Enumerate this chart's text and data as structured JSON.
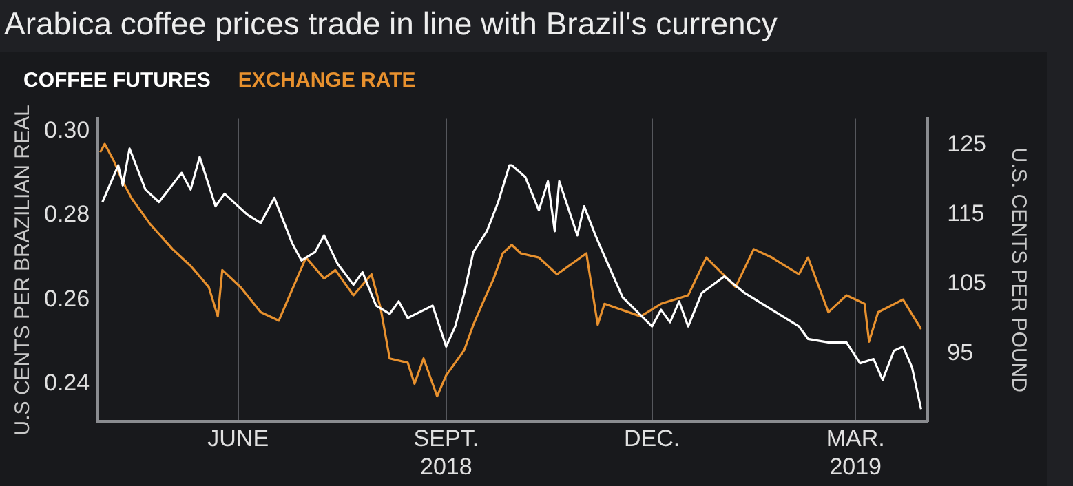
{
  "chart_data": {
    "type": "line",
    "title": "Arabica coffee prices trade in line with Brazil's currency",
    "ylabel": "U.S CENTS PER BRAZILIAN REAL",
    "y2label": "U.S. CENTS PER POUND",
    "xlim": [
      "2018-03-31",
      "2019-04-02"
    ],
    "xticks": [
      {
        "value": "2018-06-01",
        "label": "JUNE"
      },
      {
        "value": "2018-09-01",
        "label": "SEPT.\n2018"
      },
      {
        "value": "2018-12-01",
        "label": "DEC."
      },
      {
        "value": "2019-03-01",
        "label": "MAR.\n2019"
      }
    ],
    "ylim": [
      0.231,
      0.303
    ],
    "yticks": [
      0.24,
      {
        "value": 0.26,
        "label": "0.26"
      },
      {
        "value": 0.28,
        "label": "0.28"
      },
      {
        "value": 0.3,
        "label": "0.30"
      }
    ],
    "y2lim": [
      85.2,
      128.8
    ],
    "y2ticks": [
      95,
      105,
      115,
      125
    ],
    "grid": "x",
    "legend": "top left",
    "marker": "none",
    "line_style": "solid",
    "series": [
      {
        "name": "COFFEE FUTURES",
        "color": "#ffffff",
        "axis": "y2",
        "x": [
          "2018-04-02",
          "2018-04-09",
          "2018-04-11",
          "2018-04-14",
          "2018-04-21",
          "2018-04-27",
          "2018-05-07",
          "2018-05-11",
          "2018-05-15",
          "2018-05-22",
          "2018-05-26",
          "2018-06-05",
          "2018-06-11",
          "2018-06-17",
          "2018-06-25",
          "2018-06-29",
          "2018-07-05",
          "2018-07-09",
          "2018-07-15",
          "2018-07-22",
          "2018-07-26",
          "2018-08-01",
          "2018-08-07",
          "2018-08-11",
          "2018-08-15",
          "2018-08-26",
          "2018-09-01",
          "2018-09-05",
          "2018-09-09",
          "2018-09-13",
          "2018-09-19",
          "2018-09-24",
          "2018-09-29",
          "2018-09-30",
          "2018-10-06",
          "2018-10-12",
          "2018-10-16",
          "2018-10-19",
          "2018-10-21",
          "2018-10-29",
          "2018-11-01",
          "2018-11-06",
          "2018-11-10",
          "2018-11-18",
          "2018-12-01",
          "2018-12-05",
          "2018-12-09",
          "2018-12-13",
          "2018-12-17",
          "2018-12-23",
          "2019-01-02",
          "2019-01-11",
          "2019-01-23",
          "2019-02-04",
          "2019-02-08",
          "2019-02-17",
          "2019-02-25",
          "2019-03-03",
          "2019-03-09",
          "2019-03-13",
          "2019-03-18",
          "2019-03-22",
          "2019-03-26",
          "2019-03-30"
        ],
        "values": [
          116.8,
          122.1,
          119.2,
          124.5,
          118.6,
          116.8,
          121.0,
          118.6,
          123.3,
          116.2,
          118.0,
          115.0,
          113.8,
          117.4,
          110.8,
          108.4,
          109.6,
          112.0,
          107.9,
          104.9,
          106.7,
          101.9,
          100.7,
          102.5,
          100.1,
          101.9,
          96.0,
          98.9,
          103.7,
          109.6,
          112.6,
          116.8,
          122.1,
          122.1,
          120.4,
          115.6,
          119.8,
          112.6,
          119.8,
          112.0,
          116.2,
          112.0,
          109.0,
          103.1,
          98.9,
          101.3,
          99.5,
          102.5,
          98.9,
          103.7,
          106.1,
          103.7,
          101.3,
          98.9,
          97.1,
          96.6,
          96.6,
          93.6,
          94.2,
          91.2,
          95.4,
          96.0,
          93.0,
          87.0
        ]
      },
      {
        "name": "EXCHANGE RATE",
        "color": "#e8912e",
        "axis": "y",
        "x": [
          "2018-04-01",
          "2018-04-03",
          "2018-04-07",
          "2018-04-11",
          "2018-04-15",
          "2018-04-23",
          "2018-05-03",
          "2018-05-11",
          "2018-05-19",
          "2018-05-23",
          "2018-05-25",
          "2018-06-02",
          "2018-06-11",
          "2018-06-19",
          "2018-06-23",
          "2018-07-01",
          "2018-07-09",
          "2018-07-14",
          "2018-07-22",
          "2018-07-30",
          "2018-08-03",
          "2018-08-07",
          "2018-08-15",
          "2018-08-18",
          "2018-08-22",
          "2018-08-28",
          "2018-09-01",
          "2018-09-09",
          "2018-09-13",
          "2018-09-17",
          "2018-09-22",
          "2018-09-26",
          "2018-09-30",
          "2018-10-04",
          "2018-10-12",
          "2018-10-20",
          "2018-11-02",
          "2018-11-07",
          "2018-11-10",
          "2018-11-26",
          "2018-12-05",
          "2018-12-17",
          "2018-12-25",
          "2019-01-07",
          "2019-01-15",
          "2019-01-23",
          "2019-02-04",
          "2019-02-08",
          "2019-02-17",
          "2019-02-25",
          "2019-03-05",
          "2019-03-07",
          "2019-03-11",
          "2019-03-22",
          "2019-03-30"
        ],
        "values": [
          0.295,
          0.297,
          0.293,
          0.288,
          0.284,
          0.278,
          0.272,
          0.268,
          0.263,
          0.256,
          0.267,
          0.263,
          0.257,
          0.255,
          0.26,
          0.27,
          0.265,
          0.267,
          0.261,
          0.266,
          0.258,
          0.246,
          0.245,
          0.24,
          0.246,
          0.237,
          0.242,
          0.248,
          0.254,
          0.259,
          0.265,
          0.271,
          0.273,
          0.271,
          0.27,
          0.266,
          0.271,
          0.254,
          0.259,
          0.256,
          0.259,
          0.261,
          0.27,
          0.263,
          0.272,
          0.27,
          0.266,
          0.27,
          0.257,
          0.261,
          0.259,
          0.25,
          0.257,
          0.26,
          0.253
        ]
      }
    ]
  }
}
